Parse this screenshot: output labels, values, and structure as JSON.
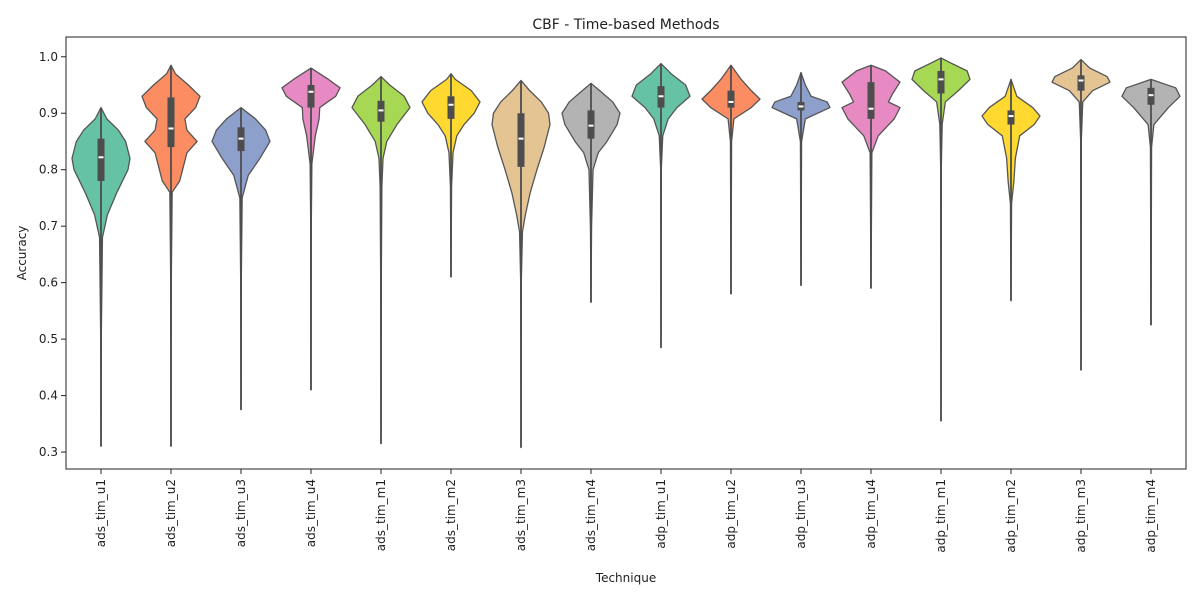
{
  "chart_data": {
    "type": "violin",
    "title": "CBF - Time-based Methods",
    "xlabel": "Technique",
    "ylabel": "Accuracy",
    "ylim": [
      0.27,
      1.035
    ],
    "yticks": [
      "0.3",
      "0.4",
      "0.5",
      "0.6",
      "0.7",
      "0.8",
      "0.9",
      "1.0"
    ],
    "grid": false,
    "legend": "none",
    "categories": [
      "ads_tim_u1",
      "ads_tim_u2",
      "ads_tim_u3",
      "ads_tim_u4",
      "ads_tim_m1",
      "ads_tim_m2",
      "ads_tim_m3",
      "ads_tim_m4",
      "adp_tim_u1",
      "adp_tim_u2",
      "adp_tim_u3",
      "adp_tim_u4",
      "adp_tim_m1",
      "adp_tim_m2",
      "adp_tim_m3",
      "adp_tim_m4"
    ],
    "colors": [
      "#66c2a5",
      "#fc8d62",
      "#8da0cb",
      "#e78ac3",
      "#a6d854",
      "#ffd92f",
      "#e5c494",
      "#b3b3b3",
      "#66c2a5",
      "#fc8d62",
      "#8da0cb",
      "#e78ac3",
      "#a6d854",
      "#ffd92f",
      "#e5c494",
      "#b3b3b3"
    ],
    "series": [
      {
        "min": 0.31,
        "q1": 0.78,
        "median": 0.822,
        "q3": 0.855,
        "max": 0.91,
        "density": [
          [
            0.31,
            0.0
          ],
          [
            0.5,
            0.01
          ],
          [
            0.68,
            0.05
          ],
          [
            0.72,
            0.22
          ],
          [
            0.76,
            0.55
          ],
          [
            0.8,
            0.93
          ],
          [
            0.82,
            1.0
          ],
          [
            0.85,
            0.85
          ],
          [
            0.87,
            0.6
          ],
          [
            0.89,
            0.2
          ],
          [
            0.91,
            0.0
          ]
        ]
      },
      {
        "min": 0.31,
        "q1": 0.84,
        "median": 0.873,
        "q3": 0.928,
        "max": 0.985,
        "density": [
          [
            0.31,
            0.0
          ],
          [
            0.6,
            0.01
          ],
          [
            0.76,
            0.04
          ],
          [
            0.78,
            0.3
          ],
          [
            0.8,
            0.4
          ],
          [
            0.83,
            0.55
          ],
          [
            0.85,
            0.9
          ],
          [
            0.87,
            0.55
          ],
          [
            0.89,
            0.48
          ],
          [
            0.91,
            0.85
          ],
          [
            0.93,
            1.0
          ],
          [
            0.95,
            0.6
          ],
          [
            0.97,
            0.15
          ],
          [
            0.985,
            0.0
          ]
        ]
      },
      {
        "min": 0.375,
        "q1": 0.833,
        "median": 0.855,
        "q3": 0.875,
        "max": 0.91,
        "density": [
          [
            0.375,
            0.0
          ],
          [
            0.6,
            0.01
          ],
          [
            0.75,
            0.04
          ],
          [
            0.79,
            0.25
          ],
          [
            0.82,
            0.65
          ],
          [
            0.85,
            1.0
          ],
          [
            0.87,
            0.85
          ],
          [
            0.89,
            0.5
          ],
          [
            0.91,
            0.0
          ]
        ]
      },
      {
        "min": 0.41,
        "q1": 0.91,
        "median": 0.938,
        "q3": 0.95,
        "max": 0.98,
        "density": [
          [
            0.41,
            0.0
          ],
          [
            0.7,
            0.01
          ],
          [
            0.81,
            0.03
          ],
          [
            0.86,
            0.15
          ],
          [
            0.89,
            0.28
          ],
          [
            0.91,
            0.3
          ],
          [
            0.93,
            0.85
          ],
          [
            0.945,
            1.0
          ],
          [
            0.96,
            0.6
          ],
          [
            0.98,
            0.0
          ]
        ]
      },
      {
        "min": 0.315,
        "q1": 0.885,
        "median": 0.905,
        "q3": 0.922,
        "max": 0.965,
        "density": [
          [
            0.315,
            0.0
          ],
          [
            0.6,
            0.01
          ],
          [
            0.77,
            0.03
          ],
          [
            0.82,
            0.07
          ],
          [
            0.85,
            0.2
          ],
          [
            0.88,
            0.55
          ],
          [
            0.91,
            1.0
          ],
          [
            0.93,
            0.8
          ],
          [
            0.95,
            0.3
          ],
          [
            0.965,
            0.0
          ]
        ]
      },
      {
        "min": 0.61,
        "q1": 0.89,
        "median": 0.915,
        "q3": 0.93,
        "max": 0.97,
        "density": [
          [
            0.61,
            0.0
          ],
          [
            0.77,
            0.02
          ],
          [
            0.83,
            0.07
          ],
          [
            0.86,
            0.2
          ],
          [
            0.88,
            0.45
          ],
          [
            0.9,
            0.8
          ],
          [
            0.92,
            1.0
          ],
          [
            0.94,
            0.7
          ],
          [
            0.96,
            0.15
          ],
          [
            0.97,
            0.0
          ]
        ]
      },
      {
        "min": 0.308,
        "q1": 0.805,
        "median": 0.855,
        "q3": 0.9,
        "max": 0.958,
        "density": [
          [
            0.308,
            0.0
          ],
          [
            0.6,
            0.01
          ],
          [
            0.69,
            0.05
          ],
          [
            0.72,
            0.15
          ],
          [
            0.76,
            0.32
          ],
          [
            0.8,
            0.55
          ],
          [
            0.84,
            0.8
          ],
          [
            0.88,
            1.0
          ],
          [
            0.9,
            0.95
          ],
          [
            0.92,
            0.7
          ],
          [
            0.94,
            0.3
          ],
          [
            0.958,
            0.0
          ]
        ]
      },
      {
        "min": 0.565,
        "q1": 0.855,
        "median": 0.878,
        "q3": 0.905,
        "max": 0.953,
        "density": [
          [
            0.565,
            0.0
          ],
          [
            0.7,
            0.02
          ],
          [
            0.8,
            0.07
          ],
          [
            0.83,
            0.25
          ],
          [
            0.85,
            0.55
          ],
          [
            0.88,
            0.9
          ],
          [
            0.9,
            1.0
          ],
          [
            0.92,
            0.75
          ],
          [
            0.94,
            0.3
          ],
          [
            0.953,
            0.0
          ]
        ]
      },
      {
        "min": 0.485,
        "q1": 0.91,
        "median": 0.93,
        "q3": 0.948,
        "max": 0.988,
        "density": [
          [
            0.485,
            0.0
          ],
          [
            0.8,
            0.01
          ],
          [
            0.86,
            0.06
          ],
          [
            0.89,
            0.25
          ],
          [
            0.91,
            0.55
          ],
          [
            0.93,
            1.0
          ],
          [
            0.95,
            0.85
          ],
          [
            0.97,
            0.35
          ],
          [
            0.988,
            0.0
          ]
        ]
      },
      {
        "min": 0.58,
        "q1": 0.91,
        "median": 0.92,
        "q3": 0.94,
        "max": 0.985,
        "density": [
          [
            0.58,
            0.0
          ],
          [
            0.85,
            0.02
          ],
          [
            0.89,
            0.1
          ],
          [
            0.91,
            0.7
          ],
          [
            0.925,
            1.0
          ],
          [
            0.94,
            0.7
          ],
          [
            0.96,
            0.35
          ],
          [
            0.985,
            0.0
          ]
        ]
      },
      {
        "min": 0.595,
        "q1": 0.905,
        "median": 0.912,
        "q3": 0.92,
        "max": 0.972,
        "density": [
          [
            0.595,
            0.0
          ],
          [
            0.85,
            0.02
          ],
          [
            0.89,
            0.15
          ],
          [
            0.91,
            1.0
          ],
          [
            0.92,
            0.9
          ],
          [
            0.93,
            0.35
          ],
          [
            0.95,
            0.15
          ],
          [
            0.972,
            0.0
          ]
        ]
      },
      {
        "min": 0.59,
        "q1": 0.89,
        "median": 0.908,
        "q3": 0.955,
        "max": 0.985,
        "density": [
          [
            0.59,
            0.0
          ],
          [
            0.83,
            0.03
          ],
          [
            0.86,
            0.25
          ],
          [
            0.89,
            0.8
          ],
          [
            0.91,
            1.0
          ],
          [
            0.92,
            0.6
          ],
          [
            0.935,
            0.75
          ],
          [
            0.955,
            1.0
          ],
          [
            0.975,
            0.5
          ],
          [
            0.985,
            0.0
          ]
        ]
      },
      {
        "min": 0.355,
        "q1": 0.935,
        "median": 0.96,
        "q3": 0.975,
        "max": 0.998,
        "density": [
          [
            0.355,
            0.0
          ],
          [
            0.8,
            0.01
          ],
          [
            0.88,
            0.04
          ],
          [
            0.92,
            0.15
          ],
          [
            0.94,
            0.6
          ],
          [
            0.96,
            1.0
          ],
          [
            0.975,
            0.9
          ],
          [
            0.99,
            0.3
          ],
          [
            0.998,
            0.0
          ]
        ]
      },
      {
        "min": 0.568,
        "q1": 0.88,
        "median": 0.895,
        "q3": 0.905,
        "max": 0.96,
        "density": [
          [
            0.568,
            0.0
          ],
          [
            0.74,
            0.02
          ],
          [
            0.78,
            0.1
          ],
          [
            0.82,
            0.15
          ],
          [
            0.86,
            0.3
          ],
          [
            0.88,
            0.8
          ],
          [
            0.895,
            1.0
          ],
          [
            0.91,
            0.75
          ],
          [
            0.93,
            0.2
          ],
          [
            0.96,
            0.0
          ]
        ]
      },
      {
        "min": 0.445,
        "q1": 0.94,
        "median": 0.958,
        "q3": 0.967,
        "max": 0.995,
        "density": [
          [
            0.445,
            0.0
          ],
          [
            0.85,
            0.01
          ],
          [
            0.92,
            0.06
          ],
          [
            0.94,
            0.4
          ],
          [
            0.955,
            1.0
          ],
          [
            0.965,
            0.9
          ],
          [
            0.98,
            0.3
          ],
          [
            0.995,
            0.0
          ]
        ]
      },
      {
        "min": 0.525,
        "q1": 0.915,
        "median": 0.932,
        "q3": 0.945,
        "max": 0.96,
        "density": [
          [
            0.525,
            0.0
          ],
          [
            0.84,
            0.02
          ],
          [
            0.88,
            0.1
          ],
          [
            0.91,
            0.6
          ],
          [
            0.93,
            1.0
          ],
          [
            0.945,
            0.85
          ],
          [
            0.96,
            0.0
          ]
        ]
      }
    ]
  }
}
